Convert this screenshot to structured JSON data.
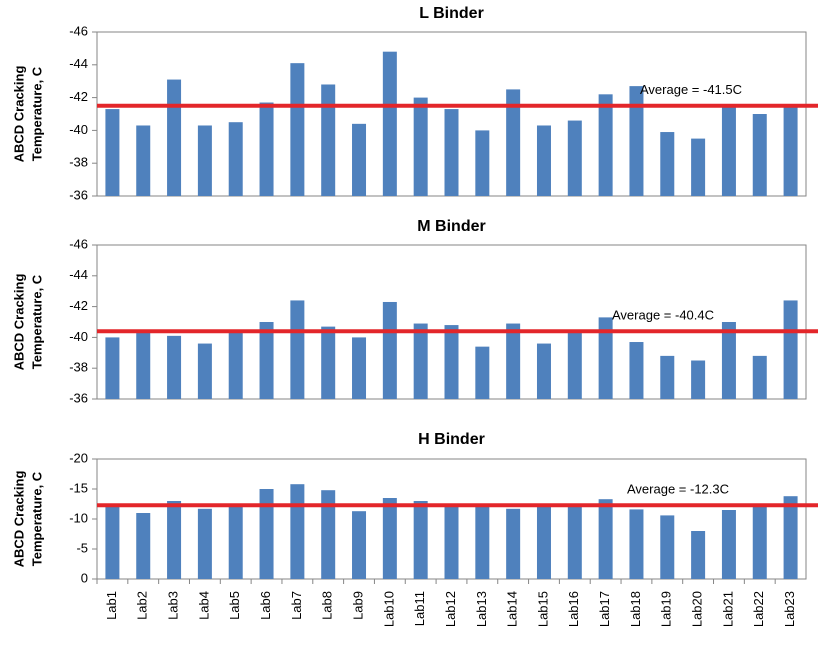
{
  "chart_data": [
    {
      "type": "bar",
      "title": "L Binder",
      "ylabel": [
        "ABCD Cracking",
        "Temperature, C"
      ],
      "categories": [
        null,
        null,
        null,
        null,
        null,
        null,
        null,
        null,
        null,
        null,
        null,
        null,
        null,
        null,
        null,
        null,
        null,
        null,
        null,
        null,
        null,
        null,
        null
      ],
      "values": [
        -41.3,
        -40.3,
        -43.1,
        -40.3,
        -40.5,
        -41.7,
        -44.1,
        -42.8,
        -40.4,
        -44.8,
        -42.0,
        -41.3,
        -40.0,
        -42.5,
        -40.3,
        -40.6,
        -42.2,
        -42.7,
        -39.9,
        -39.5,
        -41.5,
        -41.0,
        -41.5
      ],
      "color": "#4f81bd",
      "ylim": [
        -36,
        -46
      ],
      "yticks": [
        -36,
        -38,
        -40,
        -42,
        -44,
        -46
      ],
      "average": {
        "value": -41.5,
        "label": "Average = -41.5C"
      },
      "average_color": "#e3262a"
    },
    {
      "type": "bar",
      "title": "M Binder",
      "ylabel": [
        "ABCD Cracking",
        "Temperature, C"
      ],
      "categories": [
        null,
        null,
        null,
        null,
        null,
        null,
        null,
        null,
        null,
        null,
        null,
        null,
        null,
        null,
        null,
        null,
        null,
        null,
        null,
        null,
        null,
        null,
        null
      ],
      "values": [
        -40.0,
        -40.5,
        -40.1,
        -39.6,
        -40.4,
        -41.0,
        -42.4,
        -40.7,
        -40.0,
        -42.3,
        -40.9,
        -40.8,
        -39.4,
        -40.9,
        -39.6,
        -40.3,
        -41.3,
        -39.7,
        -38.8,
        -38.5,
        -41.0,
        -38.8,
        -42.4
      ],
      "color": "#4f81bd",
      "ylim": [
        -36,
        -46
      ],
      "yticks": [
        -36,
        -38,
        -40,
        -42,
        -44,
        -46
      ],
      "average": {
        "value": -40.4,
        "label": "Average = -40.4C"
      },
      "average_color": "#e3262a"
    },
    {
      "type": "bar",
      "title": "H Binder",
      "ylabel": [
        "ABCD Cracking",
        "Temperature, C"
      ],
      "categories": [
        "Lab1",
        "Lab2",
        "Lab3",
        "Lab4",
        "Lab5",
        "Lab6",
        "Lab7",
        "Lab8",
        "Lab9",
        "Lab10",
        "Lab11",
        "Lab12",
        "Lab13",
        "Lab14",
        "Lab15",
        "Lab16",
        "Lab17",
        "Lab18",
        "Lab19",
        "Lab20",
        "Lab21",
        "Lab22",
        "Lab23"
      ],
      "values": [
        -12.0,
        -11.0,
        -13.0,
        -11.7,
        -12.2,
        -15.0,
        -15.8,
        -14.8,
        -11.3,
        -13.5,
        -13.0,
        -12.2,
        -12.3,
        -11.7,
        -12.3,
        -12.0,
        -13.3,
        -11.6,
        -10.6,
        -8.0,
        -11.5,
        -12.3,
        -13.8
      ],
      "color": "#4f81bd",
      "ylim": [
        0,
        -20
      ],
      "yticks": [
        0,
        -5,
        -10,
        -15,
        -20
      ],
      "average": {
        "value": -12.3,
        "label": "Average = -12.3C"
      },
      "average_color": "#e3262a"
    }
  ]
}
